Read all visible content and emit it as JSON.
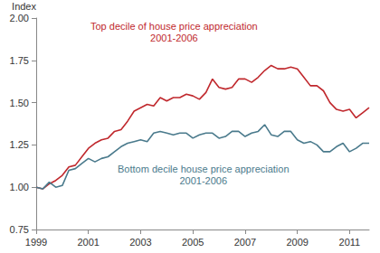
{
  "chart_data": {
    "type": "line",
    "y_label": "Index",
    "x": [
      1999,
      1999.25,
      1999.5,
      1999.75,
      2000,
      2000.25,
      2000.5,
      2000.75,
      2001,
      2001.25,
      2001.5,
      2001.75,
      2002,
      2002.25,
      2002.5,
      2002.75,
      2003,
      2003.25,
      2003.5,
      2003.75,
      2004,
      2004.25,
      2004.5,
      2004.75,
      2005,
      2005.25,
      2005.5,
      2005.75,
      2006,
      2006.25,
      2006.5,
      2006.75,
      2007,
      2007.25,
      2007.5,
      2007.75,
      2008,
      2008.25,
      2008.5,
      2008.75,
      2009,
      2009.25,
      2009.5,
      2009.75,
      2010,
      2010.25,
      2010.5,
      2010.75,
      2011,
      2011.25,
      2011.5,
      2011.75
    ],
    "series": [
      {
        "name": "Top decile of house price appreciation\n2001-2006",
        "color": "#c0282d",
        "values": [
          1.0,
          0.99,
          1.02,
          1.04,
          1.07,
          1.12,
          1.13,
          1.18,
          1.23,
          1.26,
          1.28,
          1.29,
          1.33,
          1.34,
          1.39,
          1.45,
          1.47,
          1.49,
          1.48,
          1.53,
          1.51,
          1.53,
          1.53,
          1.55,
          1.54,
          1.52,
          1.56,
          1.64,
          1.59,
          1.58,
          1.59,
          1.64,
          1.64,
          1.62,
          1.65,
          1.69,
          1.72,
          1.7,
          1.7,
          1.71,
          1.7,
          1.65,
          1.6,
          1.6,
          1.57,
          1.5,
          1.46,
          1.45,
          1.46,
          1.41,
          1.44,
          1.47
        ]
      },
      {
        "name": "Bottom decile house price appreciation\n2001-2006",
        "color": "#4a7a8c",
        "values": [
          1.0,
          0.99,
          1.03,
          1.0,
          1.01,
          1.1,
          1.11,
          1.14,
          1.17,
          1.15,
          1.17,
          1.18,
          1.21,
          1.24,
          1.26,
          1.27,
          1.28,
          1.27,
          1.32,
          1.33,
          1.32,
          1.31,
          1.32,
          1.32,
          1.29,
          1.31,
          1.32,
          1.32,
          1.29,
          1.3,
          1.33,
          1.33,
          1.3,
          1.32,
          1.33,
          1.37,
          1.31,
          1.3,
          1.33,
          1.33,
          1.28,
          1.26,
          1.27,
          1.25,
          1.21,
          1.21,
          1.24,
          1.26,
          1.21,
          1.23,
          1.26,
          1.26
        ]
      }
    ],
    "xlim": [
      1999,
      2011.75
    ],
    "xticks": [
      1999,
      2001,
      2003,
      2005,
      2007,
      2009,
      2011
    ],
    "ylim": [
      0.75,
      2.0
    ],
    "yticks": [
      {
        "value": 0.75,
        "label": "0.75"
      },
      {
        "value": 1.0,
        "label": "1.00"
      },
      {
        "value": 1.25,
        "label": "1.25"
      },
      {
        "value": 1.5,
        "label": "1.50"
      },
      {
        "value": 1.75,
        "label": "1.75"
      },
      {
        "value": 2.0,
        "label": "2.00"
      }
    ],
    "grid": false
  }
}
